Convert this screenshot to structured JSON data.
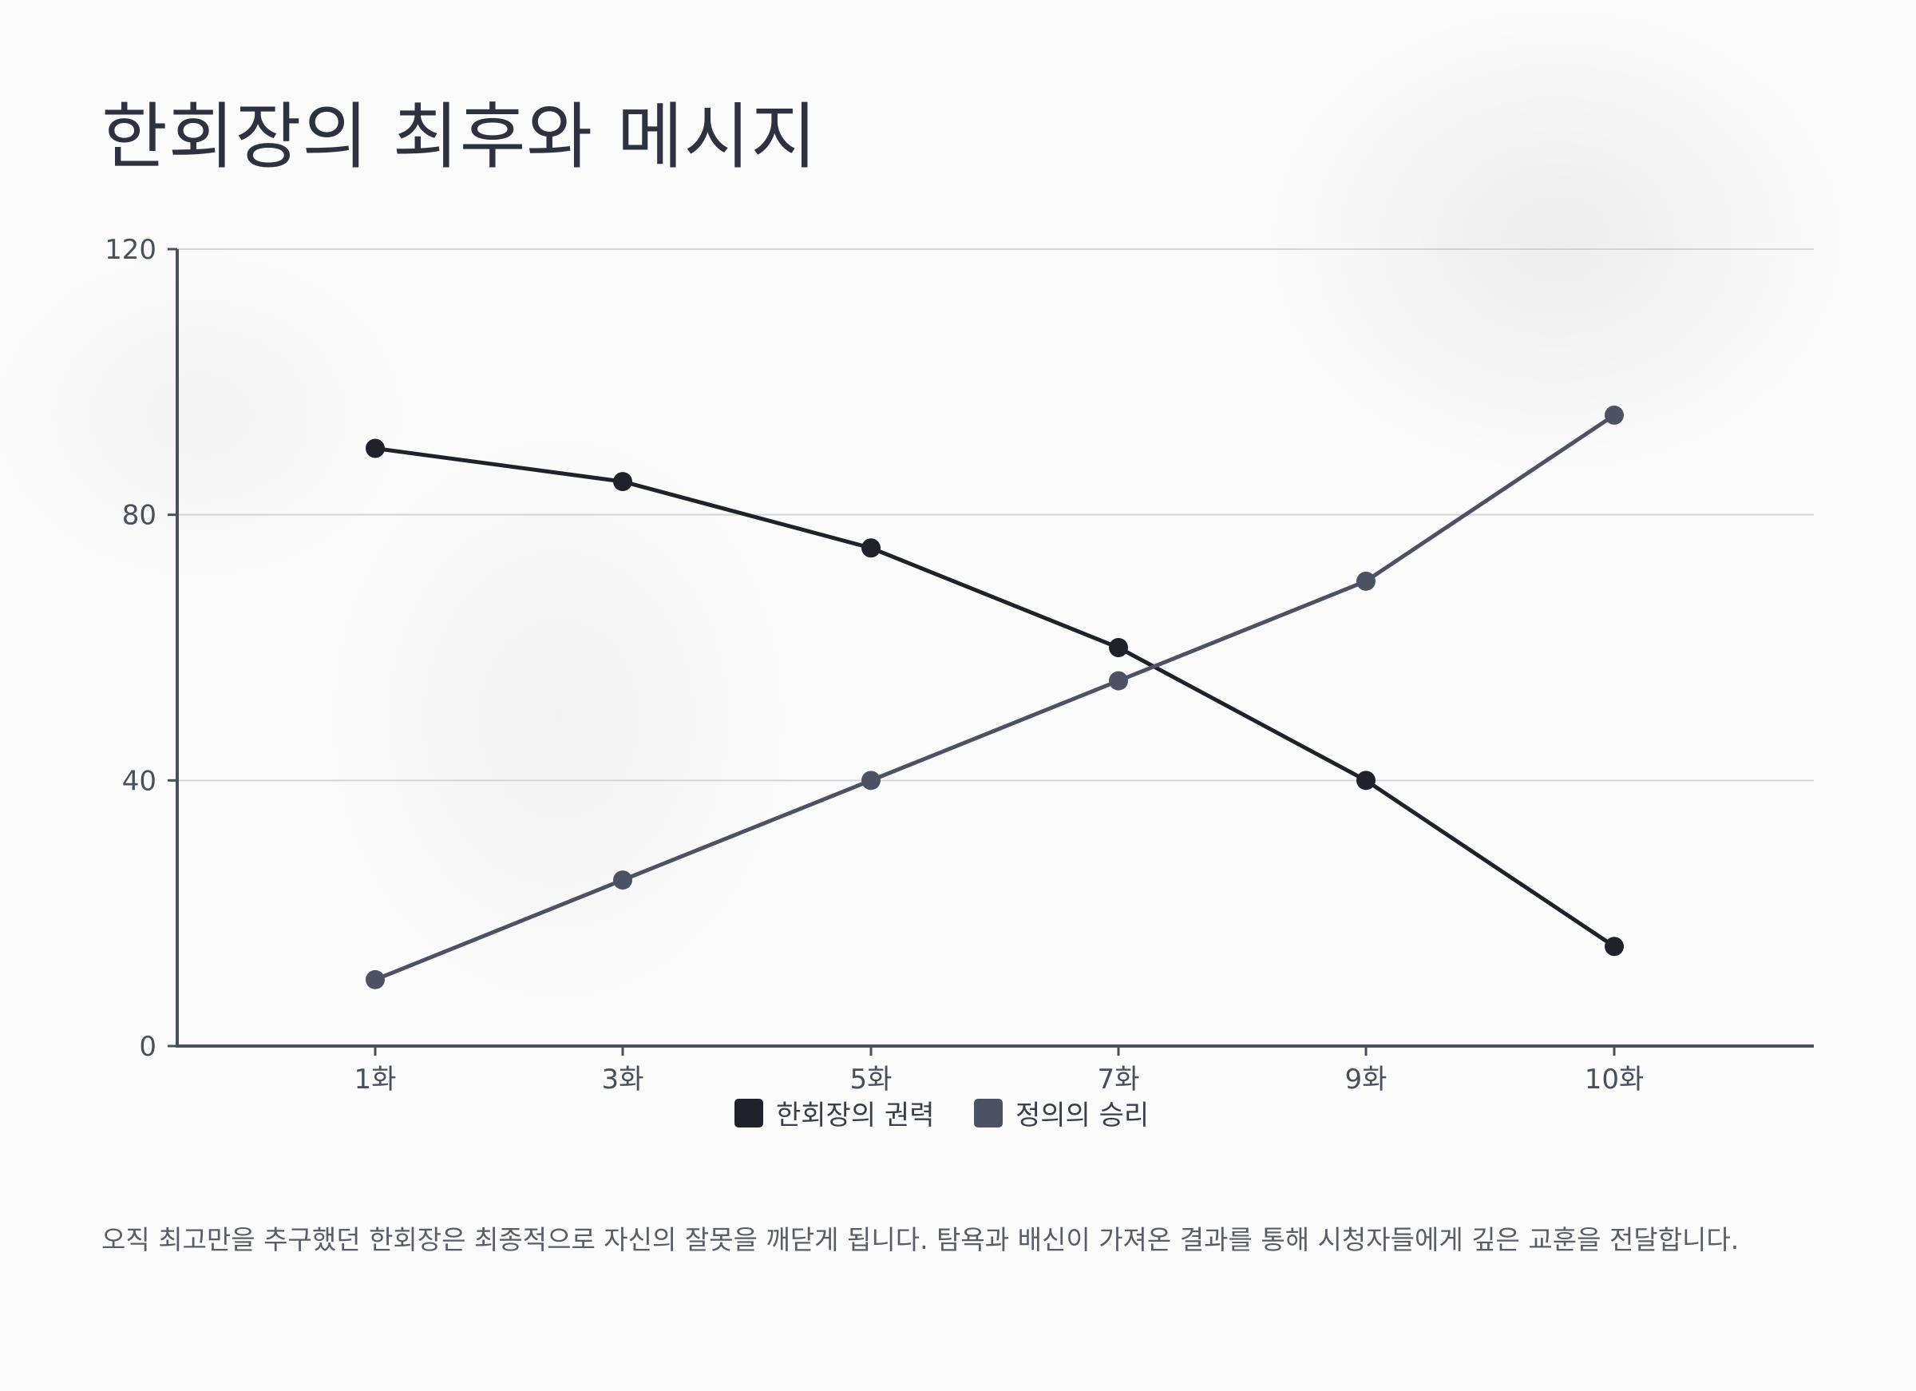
{
  "page": {
    "title": "한회장의 최후와 메시지",
    "description": "오직 최고만을 추구했던 한회장은 최종적으로 자신의 잘못을 깨닫게 됩니다. 탐욕과 배신이 가져온 결과를 통해 시청자들에게 깊은 교훈을 전달합니다."
  },
  "chart_data": {
    "type": "line",
    "title": "",
    "xlabel": "",
    "ylabel": "",
    "categories": [
      "1화",
      "3화",
      "5화",
      "7화",
      "9화",
      "10화"
    ],
    "ylim": [
      0,
      120
    ],
    "yticks": [
      0,
      40,
      80,
      120
    ],
    "grid": true,
    "legend_position": "bottom-center",
    "series": [
      {
        "name": "한회장의 권력",
        "values": [
          90,
          85,
          75,
          60,
          40,
          15
        ],
        "color": "#1f222b"
      },
      {
        "name": "정의의 승리",
        "values": [
          10,
          25,
          40,
          55,
          70,
          95
        ],
        "color": "#4c5264"
      }
    ]
  }
}
